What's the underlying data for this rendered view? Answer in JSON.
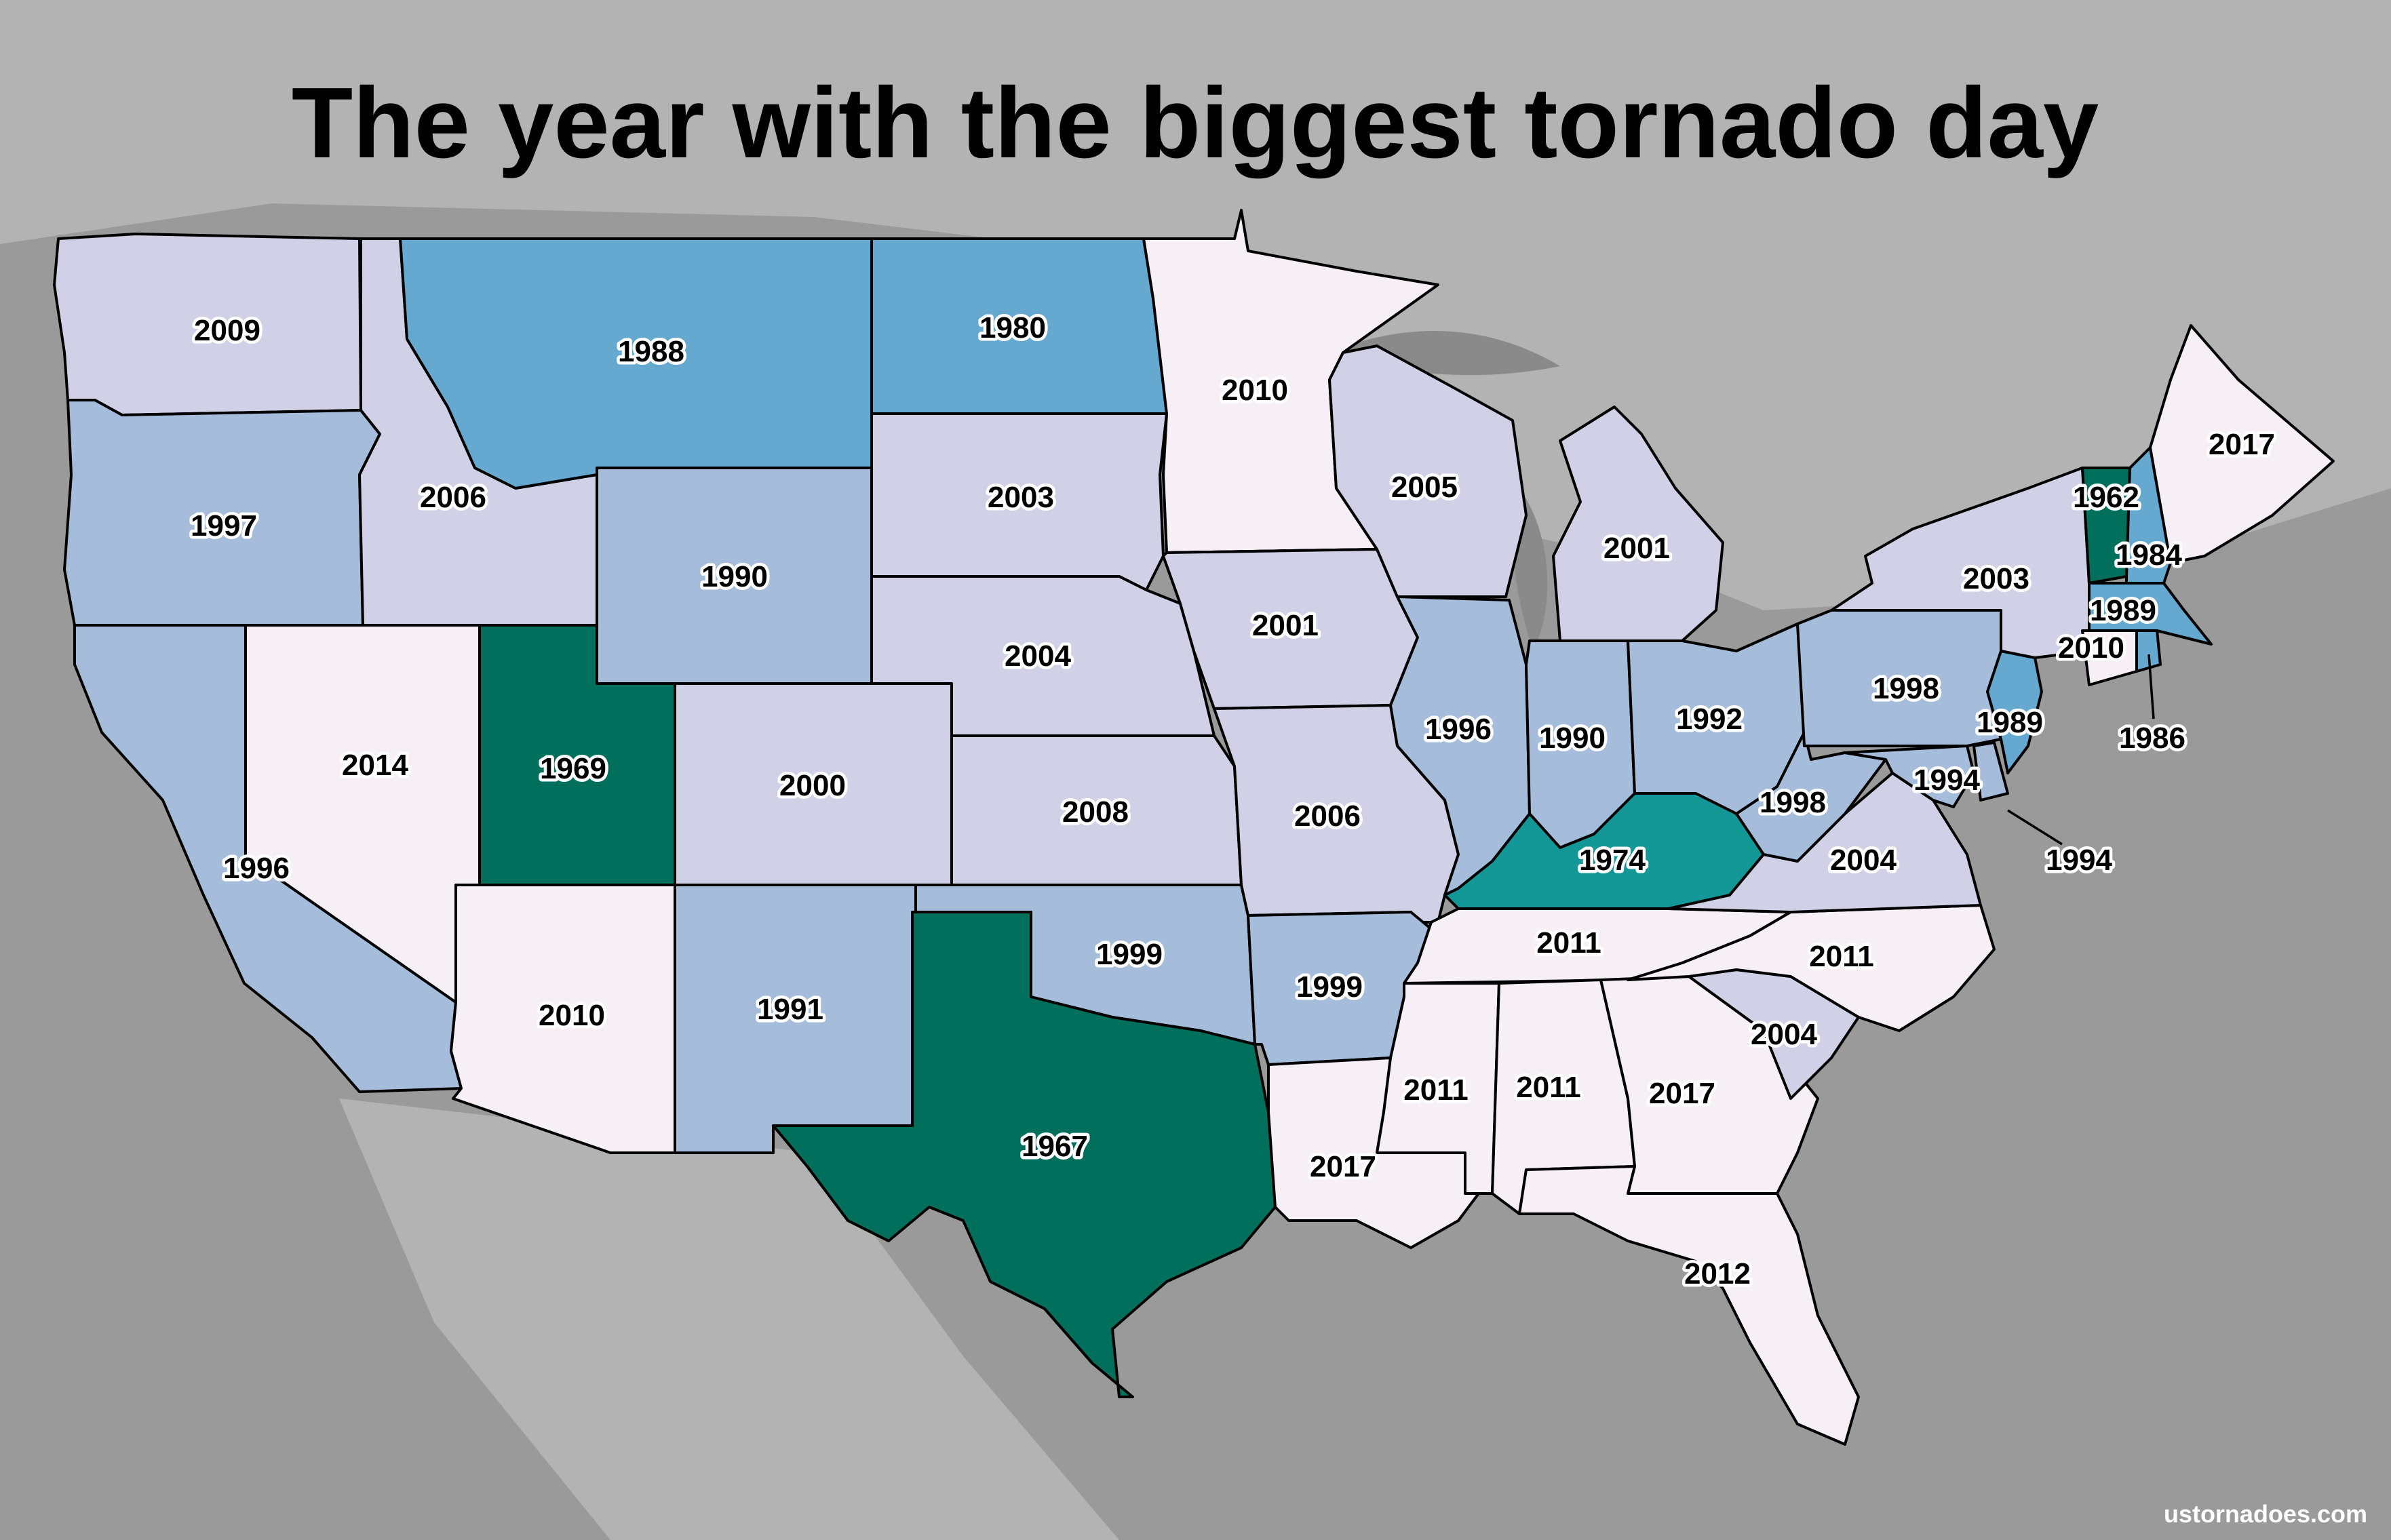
{
  "title": "The year with the biggest tornado day",
  "credit": "ustornadoes.com",
  "legend_colors": {
    "1960s": "#006f5c",
    "1970s": "#139797",
    "1980s": "#66a9d0",
    "1990s": "#a5bddb",
    "2000s": "#d0d1e6",
    "2010s": "#f6eff6"
  },
  "states": {
    "WA": "2009",
    "OR": "1997",
    "CA": "1996",
    "ID": "2006",
    "NV": "2014",
    "MT": "1988",
    "WY": "1990",
    "UT": "1969",
    "AZ": "2010",
    "CO": "2000",
    "NM": "1991",
    "ND": "1980",
    "SD": "2003",
    "NE": "2004",
    "KS": "2008",
    "OK": "1999",
    "TX": "1967",
    "MN": "2010",
    "IA": "2001",
    "MO": "2006",
    "AR": "1999",
    "LA": "2017",
    "WI": "2005",
    "IL": "1996",
    "MI": "2001",
    "IN": "1990",
    "OH": "1992",
    "KY": "1974",
    "TN": "2011",
    "MS": "2011",
    "AL": "2011",
    "GA": "2017",
    "FL": "2012",
    "SC": "2004",
    "NC": "2011",
    "VA": "2004",
    "WV": "1998",
    "PA": "1998",
    "NY": "2003",
    "VT": "1962",
    "NH": "1984",
    "ME": "2017",
    "MA": "1989",
    "CT": "2010",
    "RI": "1986",
    "NJ": "1989",
    "DE": "1994",
    "MD": "1994"
  }
}
